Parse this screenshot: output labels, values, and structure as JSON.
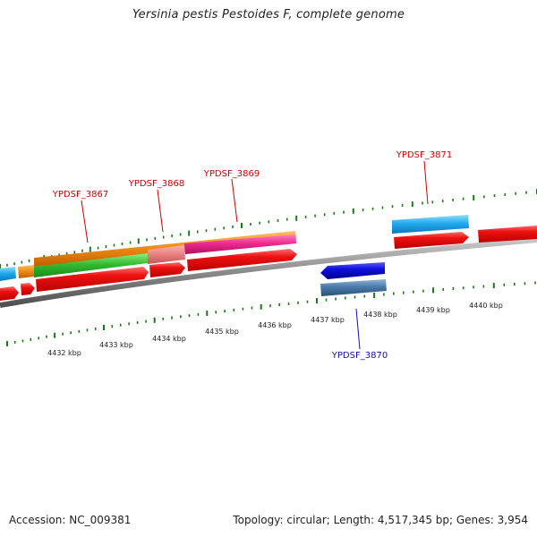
{
  "title": "Yersinia pestis Pestoides F, complete genome",
  "accession": "Accession: NC_009381",
  "summary": "Topology: circular; Length: 4,517,345 bp; Genes: 3,954",
  "colors": {
    "label_forward": "#cc0000",
    "label_reverse": "#1010b0",
    "tick": "#1a7a1a",
    "backbone": "#8a8a8a",
    "cds_red": "#ee1111",
    "cds_blue": "#1010dd",
    "orange": "#f08c14",
    "green": "#33bb33",
    "salmon": "#e88080",
    "pink": "#ee2a90",
    "cyan": "#22aaee",
    "steel": "#4a7aaa"
  },
  "scale_labels": [
    "4432 kbp",
    "4433 kbp",
    "4434 kbp",
    "4435 kbp",
    "4436 kbp",
    "4437 kbp",
    "4438 kbp",
    "4439 kbp",
    "4440 kbp"
  ],
  "gene_labels": [
    {
      "name": "YPDSF_3867",
      "strand": "forward"
    },
    {
      "name": "YPDSF_3868",
      "strand": "forward"
    },
    {
      "name": "YPDSF_3869",
      "strand": "forward"
    },
    {
      "name": "YPDSF_3870",
      "strand": "reverse"
    },
    {
      "name": "YPDSF_3871",
      "strand": "forward"
    }
  ]
}
